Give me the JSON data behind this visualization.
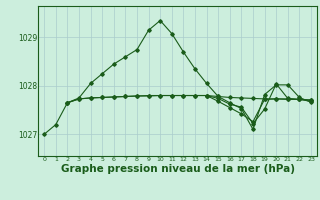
{
  "background_color": "#cceedd",
  "grid_color": "#aacccc",
  "line_color": "#1a5c1a",
  "marker_color": "#1a5c1a",
  "xlabel": "Graphe pression niveau de la mer (hPa)",
  "xlabel_fontsize": 7.5,
  "xlim": [
    -0.5,
    23.5
  ],
  "ylim": [
    1026.55,
    1029.65
  ],
  "yticks": [
    1027,
    1028,
    1029
  ],
  "xticks": [
    0,
    1,
    2,
    3,
    4,
    5,
    6,
    7,
    8,
    9,
    10,
    11,
    12,
    13,
    14,
    15,
    16,
    17,
    18,
    19,
    20,
    21,
    22,
    23
  ],
  "series1_x": [
    0,
    1,
    2,
    3,
    4,
    5,
    6,
    7,
    8,
    9,
    10,
    11,
    12,
    13,
    14,
    15,
    16,
    17,
    18,
    19,
    20,
    21,
    22,
    23
  ],
  "series1_y": [
    1027.0,
    1027.2,
    1027.65,
    1027.75,
    1028.05,
    1028.25,
    1028.45,
    1028.6,
    1028.75,
    1029.15,
    1029.35,
    1029.08,
    1028.7,
    1028.35,
    1028.05,
    1027.78,
    1027.65,
    1027.53,
    1027.1,
    1027.82,
    1028.02,
    1028.02,
    1027.76,
    1027.66
  ],
  "series2_x": [
    2,
    3,
    4,
    5,
    6,
    7,
    8,
    9,
    10,
    11,
    12,
    13,
    14,
    15,
    16,
    17,
    18,
    19,
    20,
    21,
    22,
    23
  ],
  "series2_y": [
    1027.65,
    1027.73,
    1027.75,
    1027.76,
    1027.77,
    1027.78,
    1027.79,
    1027.79,
    1027.8,
    1027.8,
    1027.8,
    1027.8,
    1027.8,
    1027.78,
    1027.76,
    1027.75,
    1027.74,
    1027.73,
    1027.73,
    1027.72,
    1027.72,
    1027.71
  ],
  "series3_x": [
    2,
    3,
    4,
    5,
    6,
    7,
    8,
    9,
    10,
    11,
    12,
    13,
    14,
    15,
    16,
    17,
    18,
    19,
    20,
    21,
    22,
    23
  ],
  "series3_y": [
    1027.65,
    1027.73,
    1027.75,
    1027.76,
    1027.77,
    1027.78,
    1027.79,
    1027.8,
    1027.8,
    1027.8,
    1027.8,
    1027.8,
    1027.8,
    1027.74,
    1027.62,
    1027.56,
    1027.22,
    1027.52,
    1028.04,
    1027.74,
    1027.72,
    1027.68
  ],
  "series4_x": [
    14,
    15,
    16,
    17,
    18,
    19,
    20,
    21,
    22,
    23
  ],
  "series4_y": [
    1027.8,
    1027.68,
    1027.55,
    1027.42,
    1027.26,
    1027.72,
    1027.73,
    1027.73,
    1027.72,
    1027.7
  ]
}
